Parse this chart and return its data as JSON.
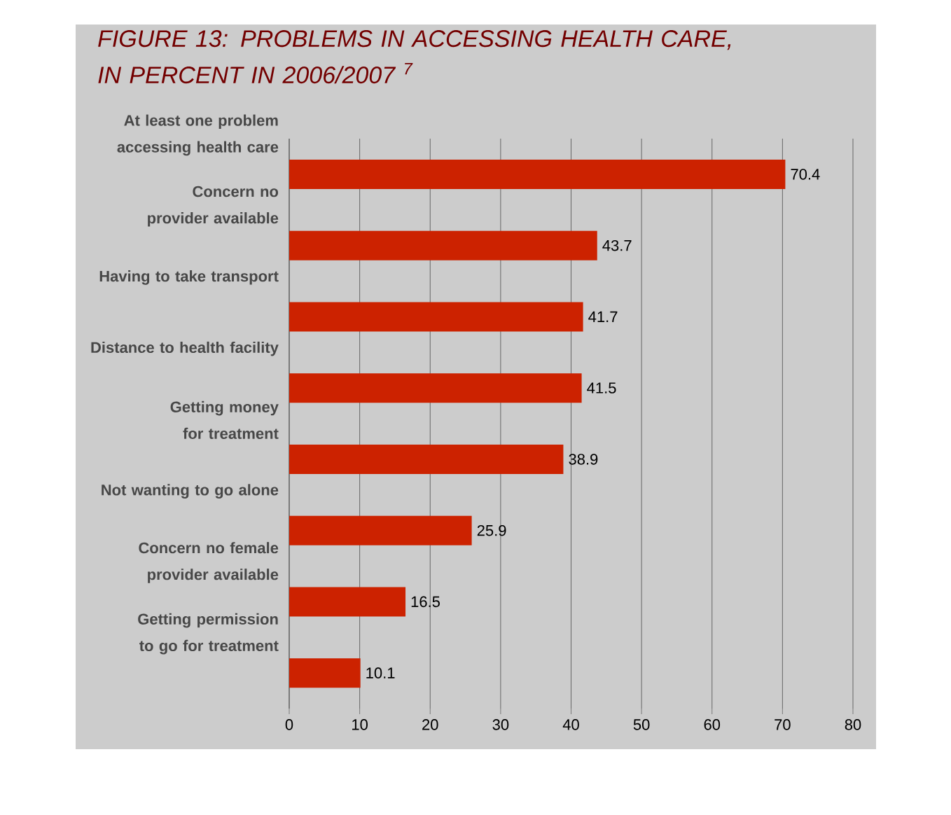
{
  "chart_data": {
    "type": "bar",
    "orientation": "horizontal",
    "title": "FIGURE 13:  PROBLEMS IN ACCESSING HEALTH CARE, IN PERCENT  IN 2006/2007 $^{7}$",
    "categories": [
      "At least one problem accessing health care",
      "Concern no provider available",
      "Having to take transport",
      "Distance to health facility",
      "Getting money for treatment",
      "Not wanting to go alone",
      "Concern no female provider available",
      "Getting permission to go for treatment"
    ],
    "values": [
      70.4,
      43.7,
      41.7,
      41.5,
      38.9,
      25.9,
      16.5,
      10.1
    ],
    "color": "#cc2200",
    "xlim": [
      0,
      80
    ],
    "xticks": [
      0,
      10,
      20,
      30,
      40,
      50,
      60,
      70,
      80
    ],
    "grid": "x",
    "data_labels": true
  }
}
